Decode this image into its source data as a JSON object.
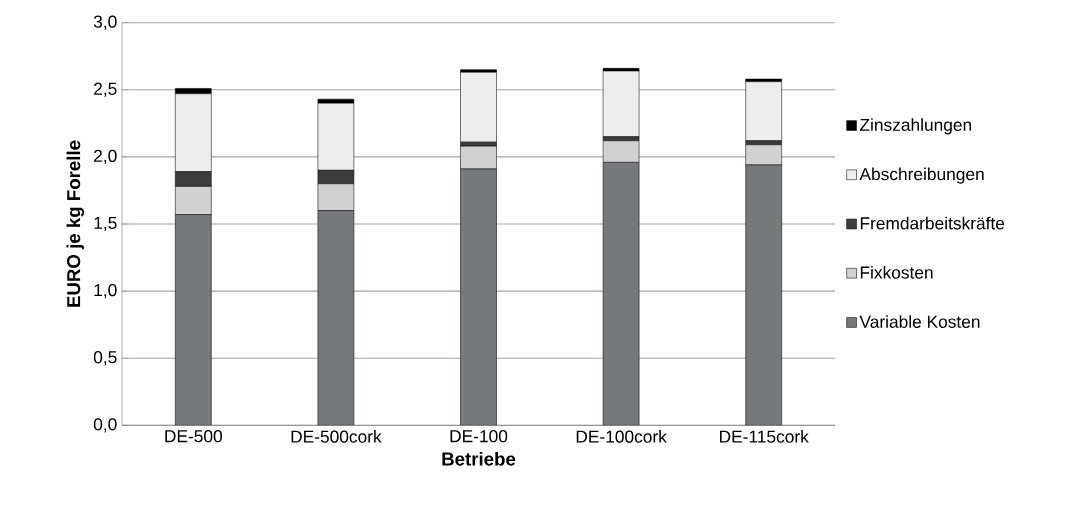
{
  "chart_data": {
    "type": "bar",
    "stacked": true,
    "xlabel": "Betriebe",
    "ylabel": "EURO je kg Forelle",
    "categories": [
      "DE-500",
      "DE-500cork",
      "DE-100",
      "DE-100cork",
      "DE-115cork"
    ],
    "series": [
      {
        "name": "Variable Kosten",
        "color": "#76797b",
        "values": [
          1.57,
          1.6,
          1.91,
          1.96,
          1.94
        ]
      },
      {
        "name": "Fixkosten",
        "color": "#d0d1d0",
        "values": [
          0.21,
          0.2,
          0.17,
          0.16,
          0.15
        ]
      },
      {
        "name": "Fremdarbeitskräfte",
        "color": "#3c3c3c",
        "values": [
          0.11,
          0.1,
          0.03,
          0.03,
          0.03
        ]
      },
      {
        "name": "Abschreibungen",
        "color": "#ededed",
        "values": [
          0.58,
          0.5,
          0.52,
          0.49,
          0.44
        ]
      },
      {
        "name": "Zinszahlungen",
        "color": "#000000",
        "values": [
          0.04,
          0.03,
          0.02,
          0.02,
          0.02
        ]
      }
    ],
    "ylim": [
      0,
      3.0
    ],
    "yticks": [
      {
        "value": 0,
        "label": "0,0"
      },
      {
        "value": 0.5,
        "label": "0,5"
      },
      {
        "value": 1.0,
        "label": "1,0"
      },
      {
        "value": 1.5,
        "label": "1,5"
      },
      {
        "value": 2.0,
        "label": "2,0"
      },
      {
        "value": 2.5,
        "label": "2,5"
      },
      {
        "value": 3.0,
        "label": "3,0"
      }
    ],
    "grid": "y",
    "legend": "right"
  }
}
